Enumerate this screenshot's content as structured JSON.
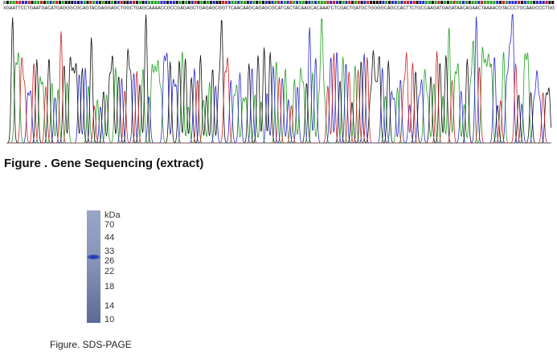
{
  "sequence": "XGAATTCCTGAATGACATGAGGGCGCAGTACGAGGAGCTGGCTGAGCAAAACCGCCGAGAGCTGAGAGCGGTTCAACAAGCAGAGCGCATCACTACAAGCACAAATCTCGACTGATGCTGGGGCAGCCACTTCTGCCAAGATGAGATAACAGAACTAAAACGTACCCTGCAAGCCCTGG",
  "sequencing_caption": "Figure . Gene Sequencing (extract)",
  "gel": {
    "unit": "kDa",
    "markers": [
      "70",
      "44",
      "33",
      "26",
      "22",
      "18",
      "14",
      "10"
    ]
  },
  "gel_caption": "Figure. SDS-PAGE"
}
